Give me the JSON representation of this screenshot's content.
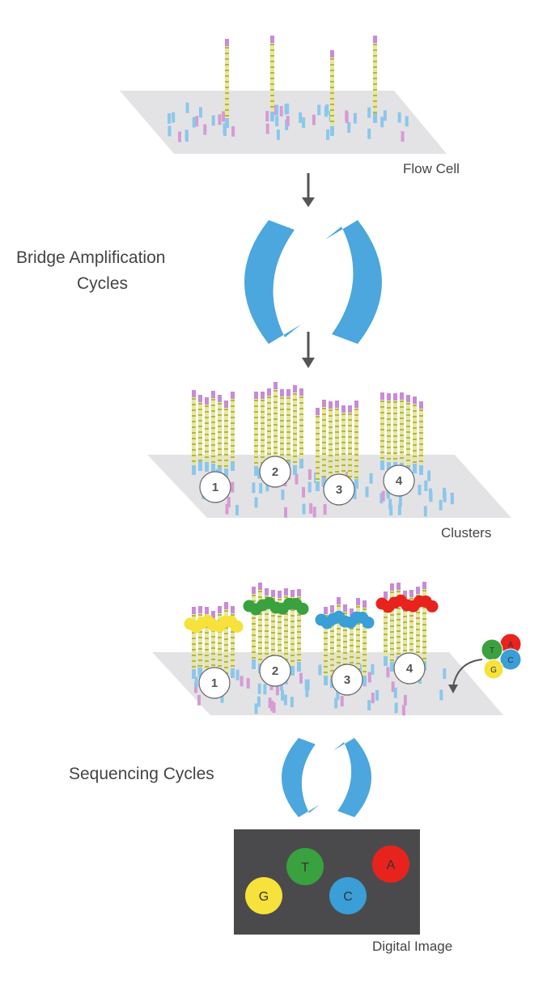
{
  "labels": {
    "flow_cell": "Flow Cell",
    "bridge_line1": "Bridge Amplification",
    "bridge_line2": "Cycles",
    "clusters": "Clusters",
    "sequencing": "Sequencing Cycles",
    "digital_image": "Digital Image"
  },
  "cluster_numbers": [
    "1",
    "2",
    "3",
    "4"
  ],
  "image_dots": [
    {
      "letter": "G",
      "color": "#f6e23a"
    },
    {
      "letter": "T",
      "color": "#3aa13f"
    },
    {
      "letter": "C",
      "color": "#3a9fd6"
    },
    {
      "letter": "A",
      "color": "#e8231e"
    }
  ],
  "side_dots": [
    {
      "letter": "A",
      "color": "#e8231e"
    },
    {
      "letter": "T",
      "color": "#3aa13f"
    },
    {
      "letter": "C",
      "color": "#3a9fd6"
    },
    {
      "letter": "G",
      "color": "#f6e23a"
    }
  ],
  "dye_colors": {
    "c1": "#f6e23a",
    "c2": "#3aa13f",
    "c3": "#3a9fd6",
    "c4": "#e8231e"
  },
  "colors": {
    "arc": "#4ba7dd",
    "plate": "#e3e3e6",
    "strand": "#e7e7a0",
    "strand_mark": "#b5b83a",
    "top_cap": "#c98ad6",
    "probe_blue": "#8cc7ea",
    "probe_pink": "#d79bd3",
    "image_bg": "#4a4a4c",
    "arrow": "#555555"
  }
}
